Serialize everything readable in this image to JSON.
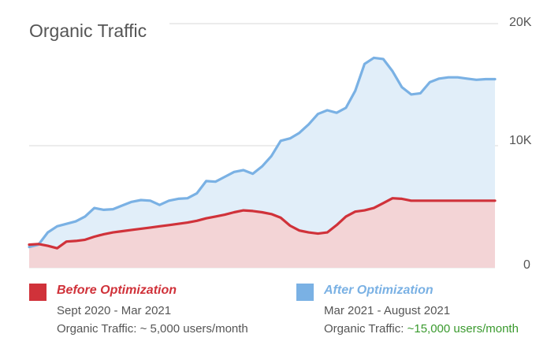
{
  "chart_data": {
    "type": "area",
    "title": "Organic Traffic",
    "xlabel": "",
    "ylabel": "",
    "ylim": [
      0,
      20000
    ],
    "yticks": [
      {
        "value": 0,
        "label": "0"
      },
      {
        "value": 10000,
        "label": "10K"
      },
      {
        "value": 20000,
        "label": "20K"
      }
    ],
    "grid": true,
    "x_index_range": [
      0,
      100
    ],
    "series": [
      {
        "name": "After Optimization",
        "color": "#7ab1e4",
        "fill": "#e1eef9",
        "x": [
          0,
          2,
          4,
          6,
          8,
          10,
          12,
          14,
          16,
          18,
          20,
          22,
          24,
          26,
          28,
          30,
          32,
          34,
          36,
          38,
          40,
          42,
          44,
          46,
          48,
          50,
          52,
          54,
          56,
          58,
          60,
          62,
          64,
          66,
          68,
          70,
          72,
          74,
          76,
          78,
          80,
          82,
          84,
          86,
          88,
          90,
          92,
          94,
          96,
          98,
          100
        ],
        "y": [
          1700,
          1900,
          2900,
          3400,
          3600,
          3800,
          4200,
          4900,
          4750,
          4800,
          5100,
          5400,
          5550,
          5500,
          5150,
          5500,
          5650,
          5700,
          6100,
          7100,
          7050,
          7450,
          7850,
          8000,
          7700,
          8300,
          9150,
          10400,
          10600,
          11050,
          11750,
          12600,
          12900,
          12700,
          13100,
          14500,
          16700,
          17200,
          17100,
          16100,
          14800,
          14200,
          14300,
          15200,
          15500,
          15600,
          15600,
          15500,
          15400,
          15450,
          15450
        ]
      },
      {
        "name": "Before Optimization",
        "color": "#d0323a",
        "fill": "#f3d4d6",
        "x": [
          0,
          2,
          4,
          6,
          8,
          10,
          12,
          14,
          16,
          18,
          20,
          22,
          24,
          26,
          28,
          30,
          32,
          34,
          36,
          38,
          40,
          42,
          44,
          46,
          48,
          50,
          52,
          54,
          56,
          58,
          60,
          62,
          64,
          66,
          68,
          70,
          72,
          74,
          76,
          78,
          80,
          82,
          84,
          86,
          88,
          90,
          92,
          94,
          96,
          98,
          100
        ],
        "y": [
          1900,
          1950,
          1800,
          1600,
          2150,
          2200,
          2300,
          2550,
          2750,
          2900,
          3000,
          3100,
          3200,
          3300,
          3400,
          3500,
          3600,
          3700,
          3850,
          4050,
          4200,
          4350,
          4550,
          4700,
          4650,
          4550,
          4400,
          4100,
          3450,
          3050,
          2900,
          2800,
          2900,
          3500,
          4200,
          4600,
          4700,
          4900,
          5300,
          5700,
          5650,
          5500,
          5500,
          5500,
          5500,
          5500,
          5500,
          5500,
          5500,
          5500,
          5500
        ]
      }
    ],
    "visible_x_max": 100,
    "legend": [
      {
        "title": "Before Optimization",
        "color": "#d0323a",
        "period": "Sept 2020 - Mar 2021",
        "traffic_prefix": "Organic Traffic: ~ 5,000 users/month",
        "traffic_highlight": ""
      },
      {
        "title": "After Optimization",
        "color": "#7ab1e4",
        "period": "Mar 2021 - August 2021",
        "traffic_prefix": "Organic Traffic: ",
        "traffic_highlight": "~15,000 users/month"
      }
    ],
    "legend_position": "bottom"
  }
}
